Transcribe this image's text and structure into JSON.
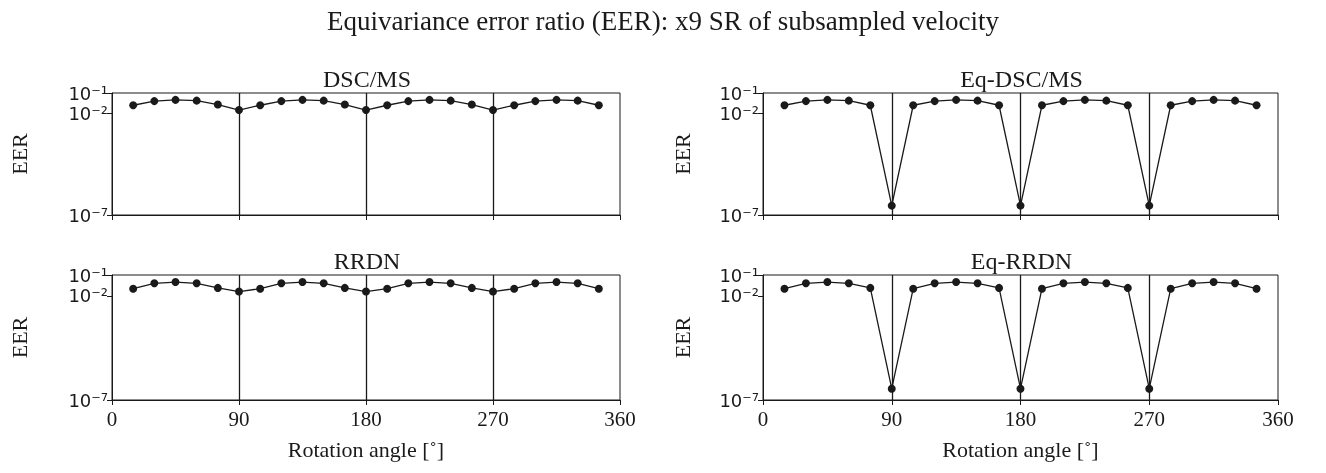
{
  "chart_data": [
    {
      "type": "line",
      "title": "DSC/MS",
      "annotations": [
        "Equivariance error ratio (EER):  x9 SR of subsampled velocity"
      ],
      "ylabel": "EER",
      "x": [
        15,
        30,
        45,
        60,
        75,
        90,
        105,
        120,
        135,
        150,
        165,
        180,
        195,
        210,
        225,
        240,
        255,
        270,
        285,
        300,
        315,
        330,
        345
      ],
      "series": [
        {
          "color": "#1a1a1a",
          "values": [
            0.025,
            0.04,
            0.046,
            0.042,
            0.027,
            0.0145,
            0.025,
            0.04,
            0.046,
            0.042,
            0.027,
            0.0145,
            0.025,
            0.04,
            0.046,
            0.042,
            0.027,
            0.0145,
            0.025,
            0.04,
            0.046,
            0.042,
            0.025
          ]
        }
      ],
      "log": "y",
      "xlim": [
        0,
        360
      ],
      "xticks": [
        0,
        90,
        180,
        270,
        360
      ],
      "ylim": [
        1e-07,
        0.1
      ],
      "yticks": [
        {
          "value": 1e-07,
          "label": "10⁻⁷"
        },
        {
          "value": 0.01,
          "label": "10⁻²"
        },
        {
          "value": 0.1,
          "label": "10⁻¹"
        }
      ],
      "tick_labels": "y",
      "grid": false,
      "marker": "circle",
      "line_style": "solid",
      "ref_lines": [
        {
          "axis": "x",
          "value": 90,
          "color": "#1a1a1a"
        },
        {
          "axis": "x",
          "value": 180,
          "color": "#1a1a1a"
        },
        {
          "axis": "x",
          "value": 270,
          "color": "#1a1a1a"
        }
      ]
    },
    {
      "type": "line",
      "title": "Eq-DSC/MS",
      "ylabel": "EER",
      "x": [
        15,
        30,
        45,
        60,
        75,
        90,
        105,
        120,
        135,
        150,
        165,
        180,
        195,
        210,
        225,
        240,
        255,
        270,
        285,
        300,
        315,
        330,
        345
      ],
      "series": [
        {
          "color": "#1a1a1a",
          "values": [
            0.025,
            0.04,
            0.046,
            0.042,
            0.025,
            2.9e-07,
            0.025,
            0.04,
            0.046,
            0.042,
            0.025,
            2.9e-07,
            0.025,
            0.04,
            0.046,
            0.042,
            0.025,
            2.9e-07,
            0.025,
            0.04,
            0.046,
            0.042,
            0.025
          ]
        }
      ],
      "log": "y",
      "xlim": [
        0,
        360
      ],
      "xticks": [
        0,
        90,
        180,
        270,
        360
      ],
      "ylim": [
        1e-07,
        0.1
      ],
      "yticks": [
        {
          "value": 1e-07,
          "label": "10⁻⁷"
        },
        {
          "value": 0.01,
          "label": "10⁻²"
        },
        {
          "value": 0.1,
          "label": "10⁻¹"
        }
      ],
      "tick_labels": "y",
      "grid": false,
      "marker": "circle",
      "line_style": "solid",
      "ref_lines": [
        {
          "axis": "x",
          "value": 90,
          "color": "#1a1a1a"
        },
        {
          "axis": "x",
          "value": 180,
          "color": "#1a1a1a"
        },
        {
          "axis": "x",
          "value": 270,
          "color": "#1a1a1a"
        }
      ]
    },
    {
      "type": "line",
      "title": "RRDN",
      "xlabel": "Rotation angle [˚]",
      "ylabel": "EER",
      "x": [
        15,
        30,
        45,
        60,
        75,
        90,
        105,
        120,
        135,
        150,
        165,
        180,
        195,
        210,
        225,
        240,
        255,
        270,
        285,
        300,
        315,
        330,
        345
      ],
      "series": [
        {
          "color": "#1a1a1a",
          "values": [
            0.022,
            0.04,
            0.046,
            0.04,
            0.024,
            0.016,
            0.022,
            0.04,
            0.046,
            0.04,
            0.024,
            0.016,
            0.022,
            0.04,
            0.046,
            0.04,
            0.024,
            0.016,
            0.022,
            0.04,
            0.046,
            0.04,
            0.022
          ]
        }
      ],
      "log": "y",
      "xlim": [
        0,
        360
      ],
      "xticks": [
        0,
        90,
        180,
        270,
        360
      ],
      "ylim": [
        1e-07,
        0.1
      ],
      "yticks": [
        {
          "value": 1e-07,
          "label": "10⁻⁷"
        },
        {
          "value": 0.01,
          "label": "10⁻²"
        },
        {
          "value": 0.1,
          "label": "10⁻¹"
        }
      ],
      "grid": false,
      "marker": "circle",
      "line_style": "solid",
      "ref_lines": [
        {
          "axis": "x",
          "value": 90,
          "color": "#1a1a1a"
        },
        {
          "axis": "x",
          "value": 180,
          "color": "#1a1a1a"
        },
        {
          "axis": "x",
          "value": 270,
          "color": "#1a1a1a"
        }
      ]
    },
    {
      "type": "line",
      "title": "Eq-RRDN",
      "xlabel": "Rotation angle [˚]",
      "ylabel": "EER",
      "x": [
        15,
        30,
        45,
        60,
        75,
        90,
        105,
        120,
        135,
        150,
        165,
        180,
        195,
        210,
        225,
        240,
        255,
        270,
        285,
        300,
        315,
        330,
        345
      ],
      "series": [
        {
          "color": "#1a1a1a",
          "values": [
            0.022,
            0.04,
            0.046,
            0.04,
            0.024,
            3.5e-07,
            0.022,
            0.04,
            0.046,
            0.04,
            0.024,
            3.5e-07,
            0.022,
            0.04,
            0.046,
            0.04,
            0.024,
            3.5e-07,
            0.022,
            0.04,
            0.046,
            0.04,
            0.022
          ]
        }
      ],
      "log": "y",
      "xlim": [
        0,
        360
      ],
      "xticks": [
        0,
        90,
        180,
        270,
        360
      ],
      "ylim": [
        1e-07,
        0.1
      ],
      "yticks": [
        {
          "value": 1e-07,
          "label": "10⁻⁷"
        },
        {
          "value": 0.01,
          "label": "10⁻²"
        },
        {
          "value": 0.1,
          "label": "10⁻¹"
        }
      ],
      "grid": false,
      "marker": "circle",
      "line_style": "solid",
      "ref_lines": [
        {
          "axis": "x",
          "value": 90,
          "color": "#1a1a1a"
        },
        {
          "axis": "x",
          "value": 180,
          "color": "#1a1a1a"
        },
        {
          "axis": "x",
          "value": 270,
          "color": "#1a1a1a"
        }
      ]
    }
  ]
}
